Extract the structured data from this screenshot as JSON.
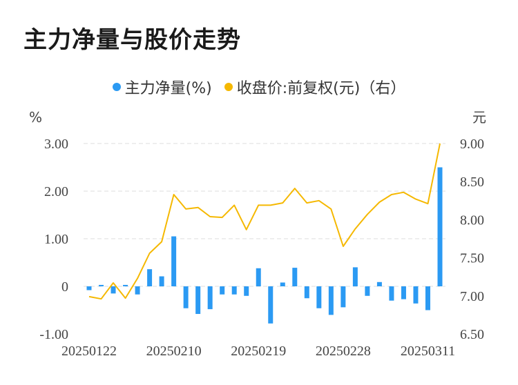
{
  "title": "主力净量与股价走势",
  "colors": {
    "bar": "#2b9af3",
    "line": "#f5b800",
    "grid": "#dddddd"
  },
  "chart_data": {
    "type": "bar+line",
    "title": "主力净量与股价走势",
    "legend": [
      {
        "name": "主力净量(%)",
        "color": "#2b9af3"
      },
      {
        "name": "收盘价:前复权(元)（右）",
        "color": "#f5b800"
      }
    ],
    "legend_position": "top-center",
    "left_unit": "%",
    "right_unit": "元",
    "left_ticks": [
      "3.00",
      "2.00",
      "1.00",
      "0",
      "-1.00"
    ],
    "right_ticks": [
      "9.00",
      "8.50",
      "8.00",
      "7.50",
      "7.00",
      "6.50"
    ],
    "ylim_left": [
      -1.0,
      3.0
    ],
    "ylim_right": [
      6.5,
      9.0
    ],
    "grid": true,
    "x_tick_labels": [
      "20250122",
      "20250210",
      "20250219",
      "20250228",
      "20250311"
    ],
    "x_tick_indices": [
      0,
      7,
      14,
      21,
      28
    ],
    "series": [
      {
        "name": "主力净量(%)",
        "type": "bar",
        "axis": "left",
        "values": [
          -0.08,
          0.03,
          -0.15,
          0.03,
          -0.17,
          0.36,
          0.21,
          1.05,
          -0.46,
          -0.58,
          -0.48,
          -0.17,
          -0.17,
          -0.2,
          0.38,
          -0.78,
          0.08,
          0.39,
          -0.25,
          -0.46,
          -0.6,
          -0.44,
          0.4,
          -0.2,
          0.09,
          -0.3,
          -0.27,
          -0.36,
          -0.5,
          2.5
        ]
      },
      {
        "name": "收盘价:前复权(元)",
        "type": "line",
        "axis": "right",
        "values": [
          6.99,
          6.96,
          7.17,
          6.97,
          7.23,
          7.56,
          7.71,
          8.33,
          8.14,
          8.16,
          8.04,
          8.03,
          8.19,
          7.87,
          8.19,
          8.19,
          8.22,
          8.41,
          8.22,
          8.25,
          8.14,
          7.65,
          7.88,
          8.07,
          8.23,
          8.33,
          8.36,
          8.27,
          8.21,
          9.0
        ]
      }
    ]
  }
}
